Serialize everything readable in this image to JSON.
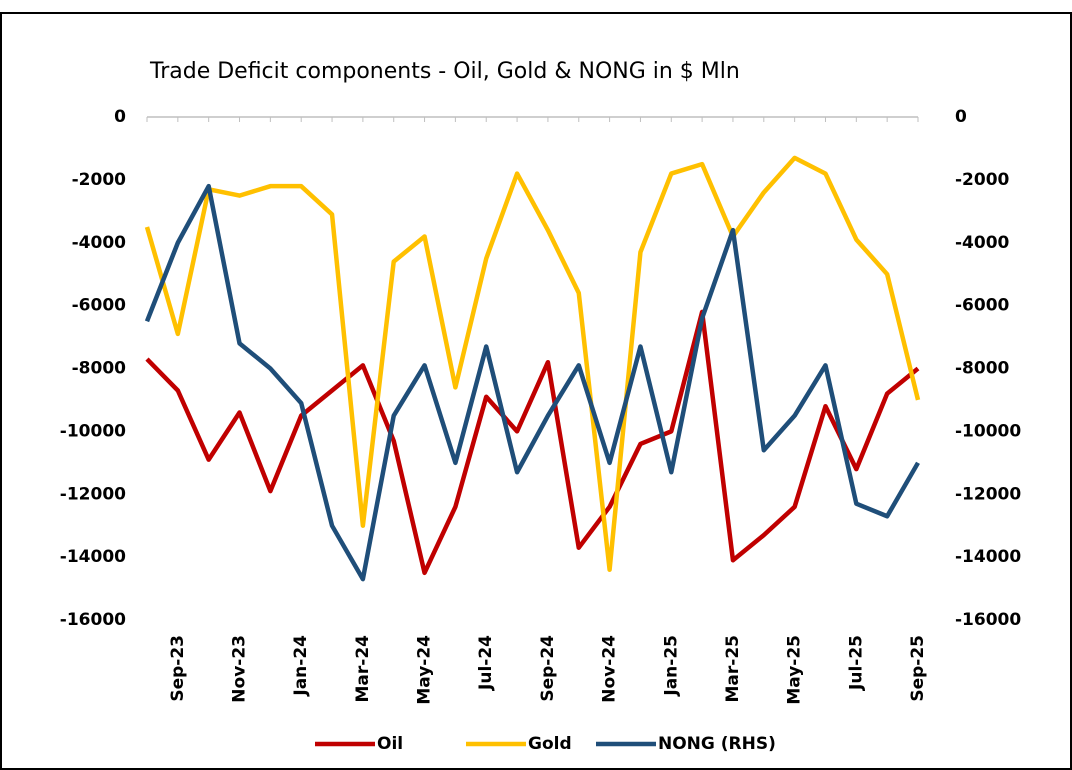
{
  "chart_data": {
    "type": "line",
    "title": "Trade Deficit components - Oil, Gold & NONG in $ Mln",
    "categories": [
      null,
      "Sep-23",
      null,
      "Nov-23",
      null,
      "Jan-24",
      null,
      "Mar-24",
      null,
      "May-24",
      null,
      "Jul-24",
      null,
      "Sep-24",
      null,
      "Nov-24",
      null,
      "Jan-25",
      null,
      "Mar-25",
      null,
      "May-25",
      null,
      "Jul-25",
      null,
      "Sep-25"
    ],
    "series": [
      {
        "name": "Oil",
        "color": "#c00000",
        "values": [
          -7700,
          -8700,
          -10900,
          -9400,
          -11900,
          -9500,
          -8700,
          -7900,
          -10300,
          -14500,
          -12400,
          -8900,
          -10000,
          -7800,
          -13700,
          -12400,
          -10400,
          -10000,
          -6200,
          -14100,
          -13300,
          -12400,
          -9200,
          -11200,
          -8800,
          -8000
        ]
      },
      {
        "name": "Gold",
        "color": "#ffc000",
        "values": [
          -3500,
          -6900,
          -2300,
          -2500,
          -2200,
          -2200,
          -3100,
          -13000,
          -4600,
          -3800,
          -8600,
          -4500,
          -1800,
          -3600,
          -5600,
          -14400,
          -4300,
          -1800,
          -1500,
          -3800,
          -2400,
          -1300,
          -1800,
          -3900,
          -5000,
          -9000
        ]
      },
      {
        "name": "NONG (RHS)",
        "color": "#1f4e79",
        "axis": "y2",
        "values": [
          -6500,
          -4000,
          -2200,
          -7200,
          -8000,
          -9100,
          -13000,
          -14700,
          -9500,
          -7900,
          -11000,
          -7300,
          -11300,
          -9500,
          -7900,
          -11000,
          -7300,
          -11300,
          -6400,
          -3600,
          -10600,
          -9500,
          -7900,
          -12300,
          -12700,
          -11000
        ]
      }
    ],
    "ylim": [
      -16000,
      0
    ],
    "yticks": [
      0,
      -2000,
      -4000,
      -6000,
      -8000,
      -10000,
      -12000,
      -14000,
      -16000
    ],
    "y2lim": [
      -16000,
      0
    ],
    "y2ticks": [
      0,
      -2000,
      -4000,
      -6000,
      -8000,
      -10000,
      -12000,
      -14000,
      -16000
    ],
    "legend": "bottom"
  }
}
